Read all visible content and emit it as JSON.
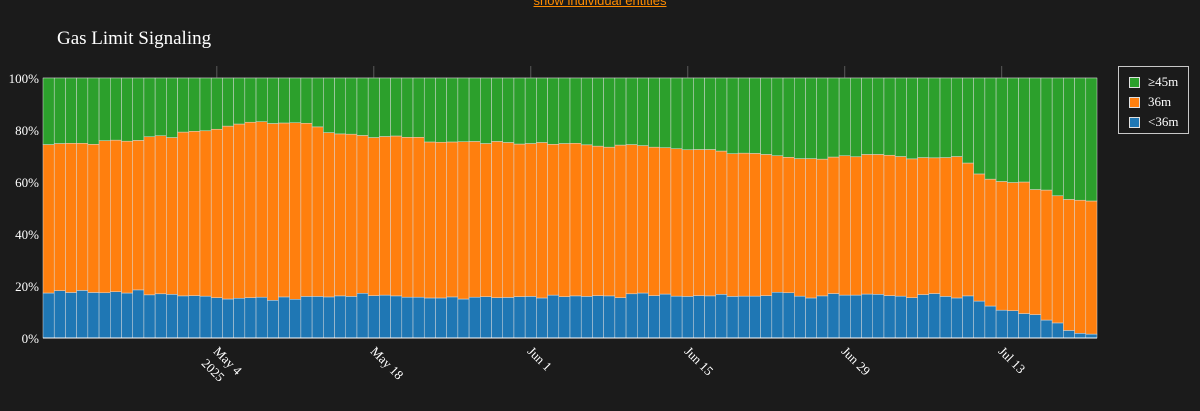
{
  "header": {
    "toggle_link": "show individual entities"
  },
  "chart_data": {
    "type": "bar",
    "stacked": true,
    "title": "Gas Limit Signaling",
    "xlabel": "",
    "ylabel": "",
    "ylim": [
      0,
      100
    ],
    "y_ticks": [
      "0%",
      "20%",
      "40%",
      "60%",
      "80%",
      "100%"
    ],
    "x_start": "2025-04-19",
    "x_ticks": [
      "May 4\n2025",
      "May 18",
      "Jun 1",
      "Jun 15",
      "Jun 29",
      "Jul 13"
    ],
    "legend_position": "right",
    "grid": true,
    "series": [
      {
        "name": "<36m",
        "color": "#1f77b4",
        "values": [
          17.3,
          18.2,
          17.5,
          18.3,
          17.5,
          17.4,
          17.8,
          17.3,
          18.5,
          16.6,
          17.0,
          16.8,
          16.2,
          16.3,
          16.1,
          15.5,
          15.0,
          15.3,
          15.5,
          15.7,
          14.5,
          15.8,
          14.9,
          16.0,
          16.0,
          15.8,
          16.2,
          16.0,
          17.2,
          16.3,
          16.5,
          16.2,
          15.7,
          15.7,
          15.4,
          15.4,
          15.8,
          15.0,
          15.7,
          15.9,
          15.5,
          15.6,
          15.9,
          16.0,
          15.4,
          16.5,
          15.9,
          16.2,
          16.0,
          16.3,
          16.2,
          15.5,
          17.0,
          17.3,
          16.3,
          16.9,
          16.1,
          16.0,
          16.3,
          16.2,
          16.8,
          16.0,
          16.1,
          16.1,
          16.3,
          17.6,
          17.4,
          16.1,
          15.4,
          16.2,
          17.1,
          16.5,
          16.5,
          16.9,
          16.8,
          16.3,
          16.1,
          15.5,
          16.7,
          17.1,
          16.0,
          15.4,
          16.2,
          14.2,
          12.3,
          10.7,
          10.5,
          9.4,
          9.0,
          6.9,
          5.8,
          2.9,
          1.8,
          1.5
        ]
      },
      {
        "name": "36m",
        "color": "#ff7f0e",
        "values": [
          57.1,
          56.6,
          57.4,
          56.6,
          57.0,
          58.5,
          58.3,
          58.4,
          57.5,
          60.8,
          60.8,
          60.3,
          63.0,
          63.2,
          63.6,
          64.8,
          66.5,
          67.0,
          67.5,
          67.5,
          68.0,
          66.9,
          67.9,
          66.6,
          65.2,
          63.2,
          62.3,
          62.4,
          60.7,
          60.8,
          61.0,
          61.5,
          61.5,
          61.5,
          60.0,
          59.9,
          59.6,
          60.5,
          59.9,
          58.9,
          60.1,
          59.6,
          58.7,
          58.8,
          59.8,
          58.0,
          58.9,
          58.7,
          58.3,
          57.5,
          57.2,
          58.7,
          57.4,
          56.7,
          57.1,
          56.3,
          56.7,
          56.4,
          56.2,
          56.3,
          55.1,
          54.9,
          55.0,
          54.9,
          54.3,
          52.5,
          52.1,
          52.9,
          53.6,
          52.6,
          52.5,
          53.6,
          53.2,
          53.7,
          53.8,
          54.0,
          53.7,
          53.4,
          52.7,
          52.2,
          53.4,
          54.4,
          51.1,
          48.9,
          48.8,
          49.5,
          49.3,
          50.6,
          48.1,
          50.0,
          48.9,
          50.4,
          51.2,
          51.2
        ]
      },
      {
        "name": "≥45m",
        "color": "#2ca02c",
        "values": [
          25.6,
          25.2,
          25.1,
          25.1,
          25.5,
          24.1,
          23.9,
          24.3,
          24.0,
          22.6,
          22.2,
          22.9,
          20.8,
          20.5,
          20.3,
          19.7,
          18.5,
          17.7,
          17.0,
          16.8,
          17.5,
          17.3,
          17.2,
          17.4,
          18.8,
          21.0,
          21.5,
          21.6,
          22.1,
          22.9,
          22.5,
          22.3,
          22.8,
          22.8,
          24.6,
          24.7,
          24.6,
          24.5,
          24.4,
          25.2,
          24.4,
          24.8,
          25.4,
          25.2,
          24.8,
          25.5,
          25.2,
          25.1,
          25.7,
          26.2,
          26.6,
          25.8,
          25.6,
          26.0,
          26.6,
          26.8,
          27.2,
          27.6,
          27.5,
          27.5,
          28.1,
          29.1,
          28.9,
          29.0,
          29.4,
          29.9,
          30.5,
          31.0,
          31.0,
          31.2,
          30.4,
          29.9,
          30.3,
          29.4,
          29.4,
          29.7,
          30.2,
          31.1,
          30.6,
          30.7,
          30.6,
          30.2,
          32.7,
          36.9,
          38.9,
          39.8,
          40.2,
          40.0,
          42.9,
          43.1,
          45.3,
          46.7,
          47.0,
          47.3
        ]
      }
    ]
  }
}
